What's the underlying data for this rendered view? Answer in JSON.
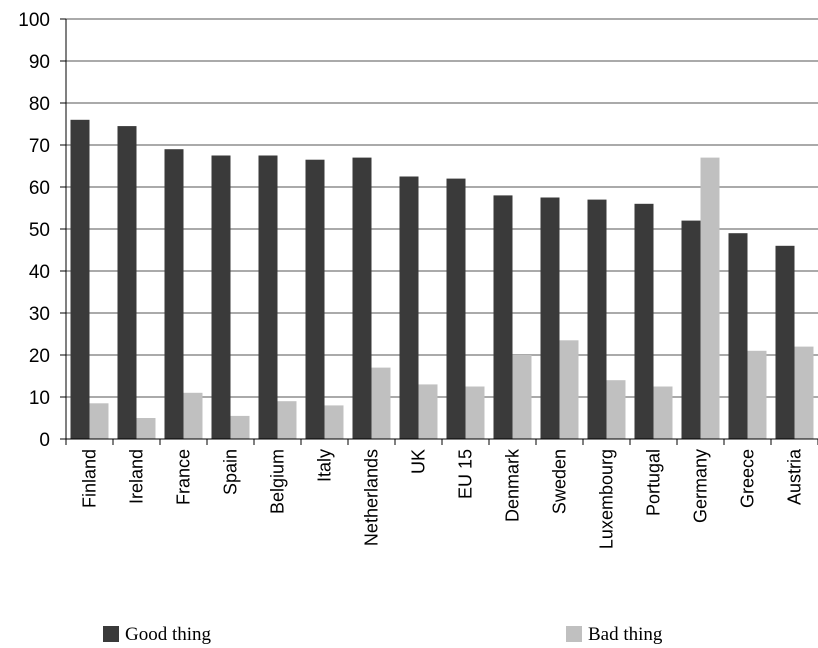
{
  "chart_data": {
    "type": "bar",
    "categories": [
      "Finland",
      "Ireland",
      "France",
      "Spain",
      "Belgium",
      "Italy",
      "Netherlands",
      "UK",
      "EU 15",
      "Denmark",
      "Sweden",
      "Luxembourg",
      "Portugal",
      "Germany",
      "Greece",
      "Austria"
    ],
    "series": [
      {
        "name": "Good thing",
        "color": "#3a3a3a",
        "values": [
          76,
          74.5,
          69,
          67.5,
          67.5,
          66.5,
          67,
          62.5,
          62,
          58,
          57.5,
          57,
          56,
          52,
          49,
          46
        ]
      },
      {
        "name": "Bad thing",
        "color": "#c0c0c0",
        "values": [
          8.5,
          5,
          11,
          5.5,
          9,
          8,
          17,
          13,
          12.5,
          20,
          23.5,
          14,
          12.5,
          67,
          21,
          22
        ]
      }
    ],
    "ylim": [
      0,
      100
    ],
    "yticks": [
      0,
      10,
      20,
      30,
      40,
      50,
      60,
      70,
      80,
      90,
      100
    ],
    "grid": true,
    "legend_position": "bottom"
  }
}
